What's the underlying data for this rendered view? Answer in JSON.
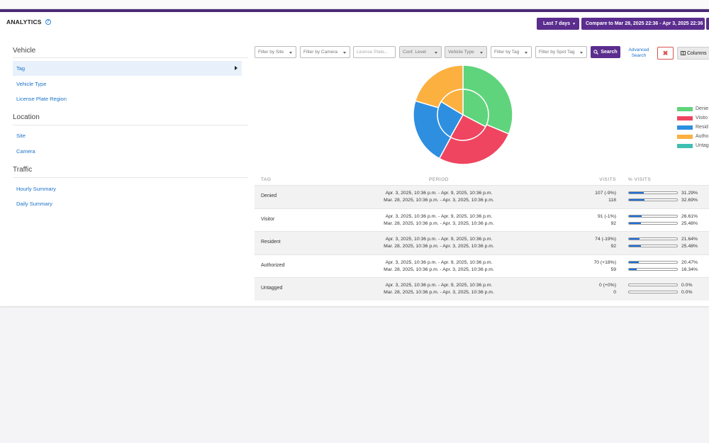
{
  "header": {
    "title": "ANALYTICS",
    "range_label": "Last 7 days",
    "compare_label": "Compare to Mar 28, 2025 22:36 - Apr 3, 2025 22:36"
  },
  "sidebar": {
    "sections": [
      {
        "title": "Vehicle",
        "items": [
          "Tag",
          "Vehicle Type",
          "License Plate Region"
        ]
      },
      {
        "title": "Location",
        "items": [
          "Site",
          "Camera"
        ]
      },
      {
        "title": "Traffic",
        "items": [
          "Hourly Summary",
          "Daily Summary"
        ]
      }
    ]
  },
  "filters": {
    "site": "Filter by Site",
    "camera": "Filter by Camera",
    "plate_placeholder": "License Plate...",
    "conf": "Conf. Level",
    "vehicle_type": "Vehicle Type",
    "tag": "Filter by Tag",
    "spot_tag": "Filter by Spot Tag",
    "search": "Search",
    "advanced": "Advanced Search",
    "clear": "✖",
    "columns": "Columns"
  },
  "chart_data": {
    "type": "pie",
    "outer": [
      {
        "label": "Denied",
        "value": 107,
        "color": "#5fd47c"
      },
      {
        "label": "Visitor",
        "value": 91,
        "color": "#ef4560"
      },
      {
        "label": "Resident",
        "value": 74,
        "color": "#2e8fe0"
      },
      {
        "label": "Authorized",
        "value": 70,
        "color": "#fbb040"
      },
      {
        "label": "Untagged",
        "value": 0,
        "color": "#3fbfb0"
      }
    ],
    "inner": [
      {
        "label": "Denied",
        "value": 118,
        "color": "#5fd47c"
      },
      {
        "label": "Visitor",
        "value": 92,
        "color": "#ef4560"
      },
      {
        "label": "Resident",
        "value": 92,
        "color": "#2e8fe0"
      },
      {
        "label": "Authorized",
        "value": 59,
        "color": "#fbb040"
      },
      {
        "label": "Untagged",
        "value": 0,
        "color": "#3fbfb0"
      }
    ],
    "legend": [
      "Denie",
      "Visito",
      "Resid",
      "Autho",
      "Untag"
    ]
  },
  "table": {
    "headers": [
      "TAG",
      "PERIOD",
      "VISITS",
      "% VISITS"
    ],
    "rows": [
      {
        "tag": "Denied",
        "p1": "Apr. 3, 2025, 10:36 p.m. - Apr. 9, 2025, 10:36 p.m.",
        "p2": "Mar. 28, 2025, 10:36 p.m. - Apr. 3, 2025, 10:36 p.m.",
        "v1": "107 (-9%)",
        "v2": "118",
        "pct1": "31.29%",
        "pct2": "32.69%",
        "f1": 0.3129,
        "f2": 0.3269
      },
      {
        "tag": "Visitor",
        "p1": "Apr. 3, 2025, 10:36 p.m. - Apr. 9, 2025, 10:36 p.m.",
        "p2": "Mar. 28, 2025, 10:36 p.m. - Apr. 3, 2025, 10:36 p.m.",
        "v1": "91 (-1%)",
        "v2": "92",
        "pct1": "26.61%",
        "pct2": "25.48%",
        "f1": 0.2661,
        "f2": 0.2548
      },
      {
        "tag": "Resident",
        "p1": "Apr. 3, 2025, 10:36 p.m. - Apr. 9, 2025, 10:36 p.m.",
        "p2": "Mar. 28, 2025, 10:36 p.m. - Apr. 3, 2025, 10:36 p.m.",
        "v1": "74 (-19%)",
        "v2": "92",
        "pct1": "21.64%",
        "pct2": "25.48%",
        "f1": 0.2164,
        "f2": 0.2548
      },
      {
        "tag": "Authorized",
        "p1": "Apr. 3, 2025, 10:36 p.m. - Apr. 9, 2025, 10:36 p.m.",
        "p2": "Mar. 28, 2025, 10:36 p.m. - Apr. 3, 2025, 10:36 p.m.",
        "v1": "70 (+18%)",
        "v2": "59",
        "pct1": "20.47%",
        "pct2": "16.34%",
        "f1": 0.2047,
        "f2": 0.1634
      },
      {
        "tag": "Untagged",
        "p1": "Apr. 3, 2025, 10:36 p.m. - Apr. 9, 2025, 10:36 p.m.",
        "p2": "Mar. 28, 2025, 10:36 p.m. - Apr. 3, 2025, 10:36 p.m.",
        "v1": "0 (+0%)",
        "v2": "0",
        "pct1": "0.0%",
        "pct2": "0.0%",
        "f1": 0,
        "f2": 0
      }
    ]
  }
}
